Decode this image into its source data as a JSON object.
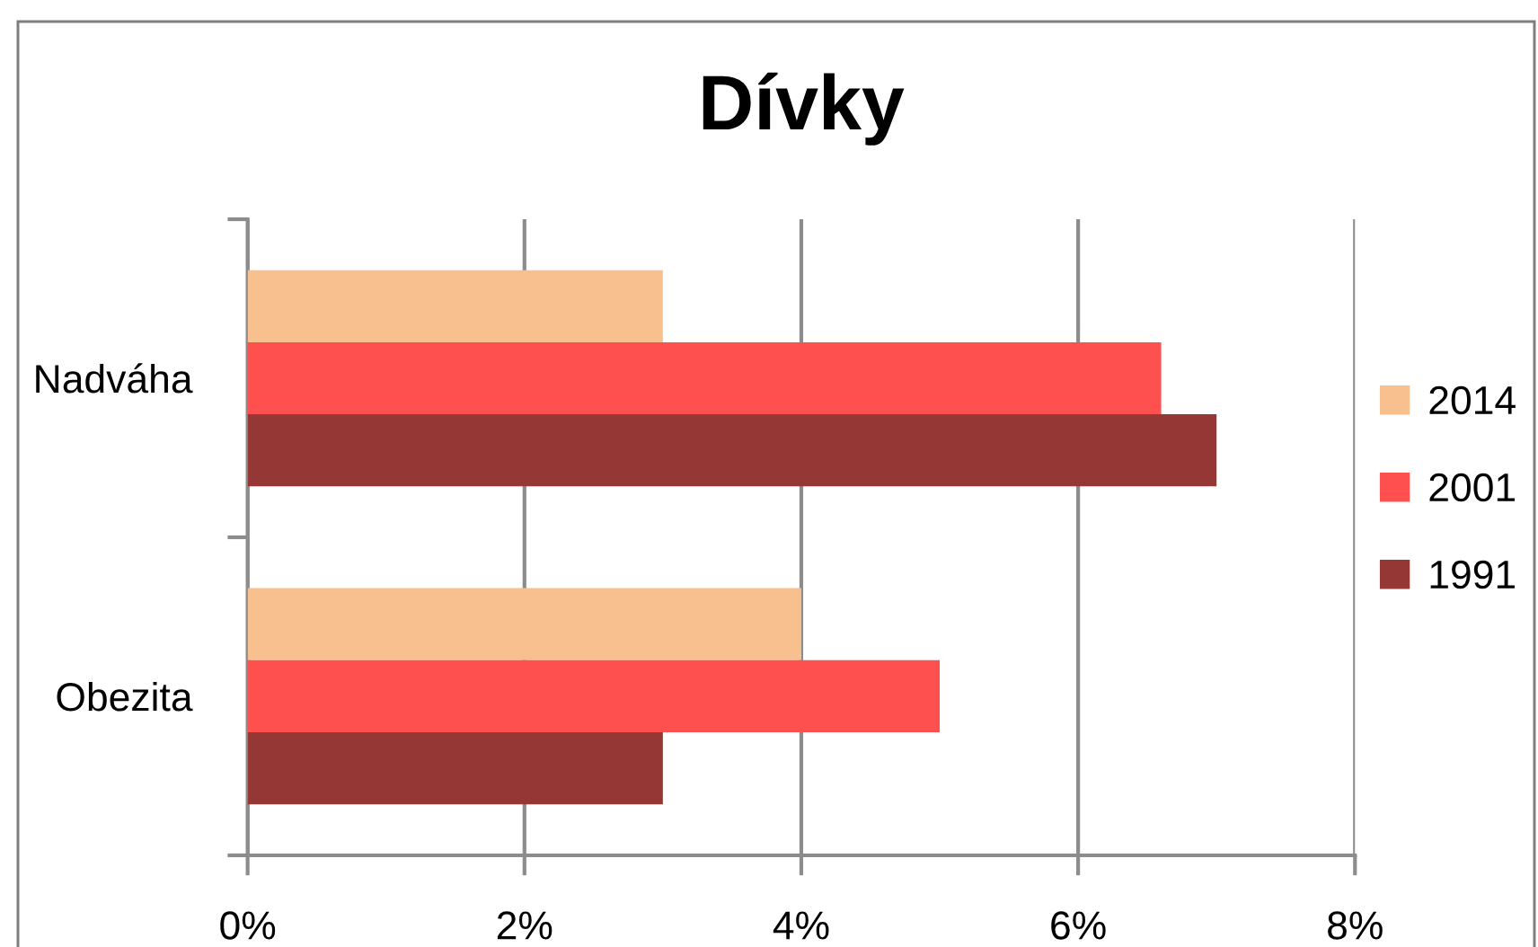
{
  "chart_data": {
    "type": "bar",
    "orientation": "horizontal",
    "title": "Dívky",
    "categories": [
      "Nadváha",
      "Obezita"
    ],
    "series": [
      {
        "name": "2014",
        "color": "#f9c08f",
        "values": [
          3.0,
          4.0
        ]
      },
      {
        "name": "2001",
        "color": "#ff5050",
        "values": [
          6.6,
          5.0
        ]
      },
      {
        "name": "1991",
        "color": "#953735",
        "values": [
          7.0,
          3.0
        ]
      }
    ],
    "xlim": [
      0,
      8
    ],
    "xticks": [
      {
        "value": 0,
        "label": "0%"
      },
      {
        "value": 2,
        "label": "2%"
      },
      {
        "value": 4,
        "label": "4%"
      },
      {
        "value": 6,
        "label": "6%"
      },
      {
        "value": 8,
        "label": "8%"
      }
    ],
    "grid": "x",
    "legend": "right"
  }
}
